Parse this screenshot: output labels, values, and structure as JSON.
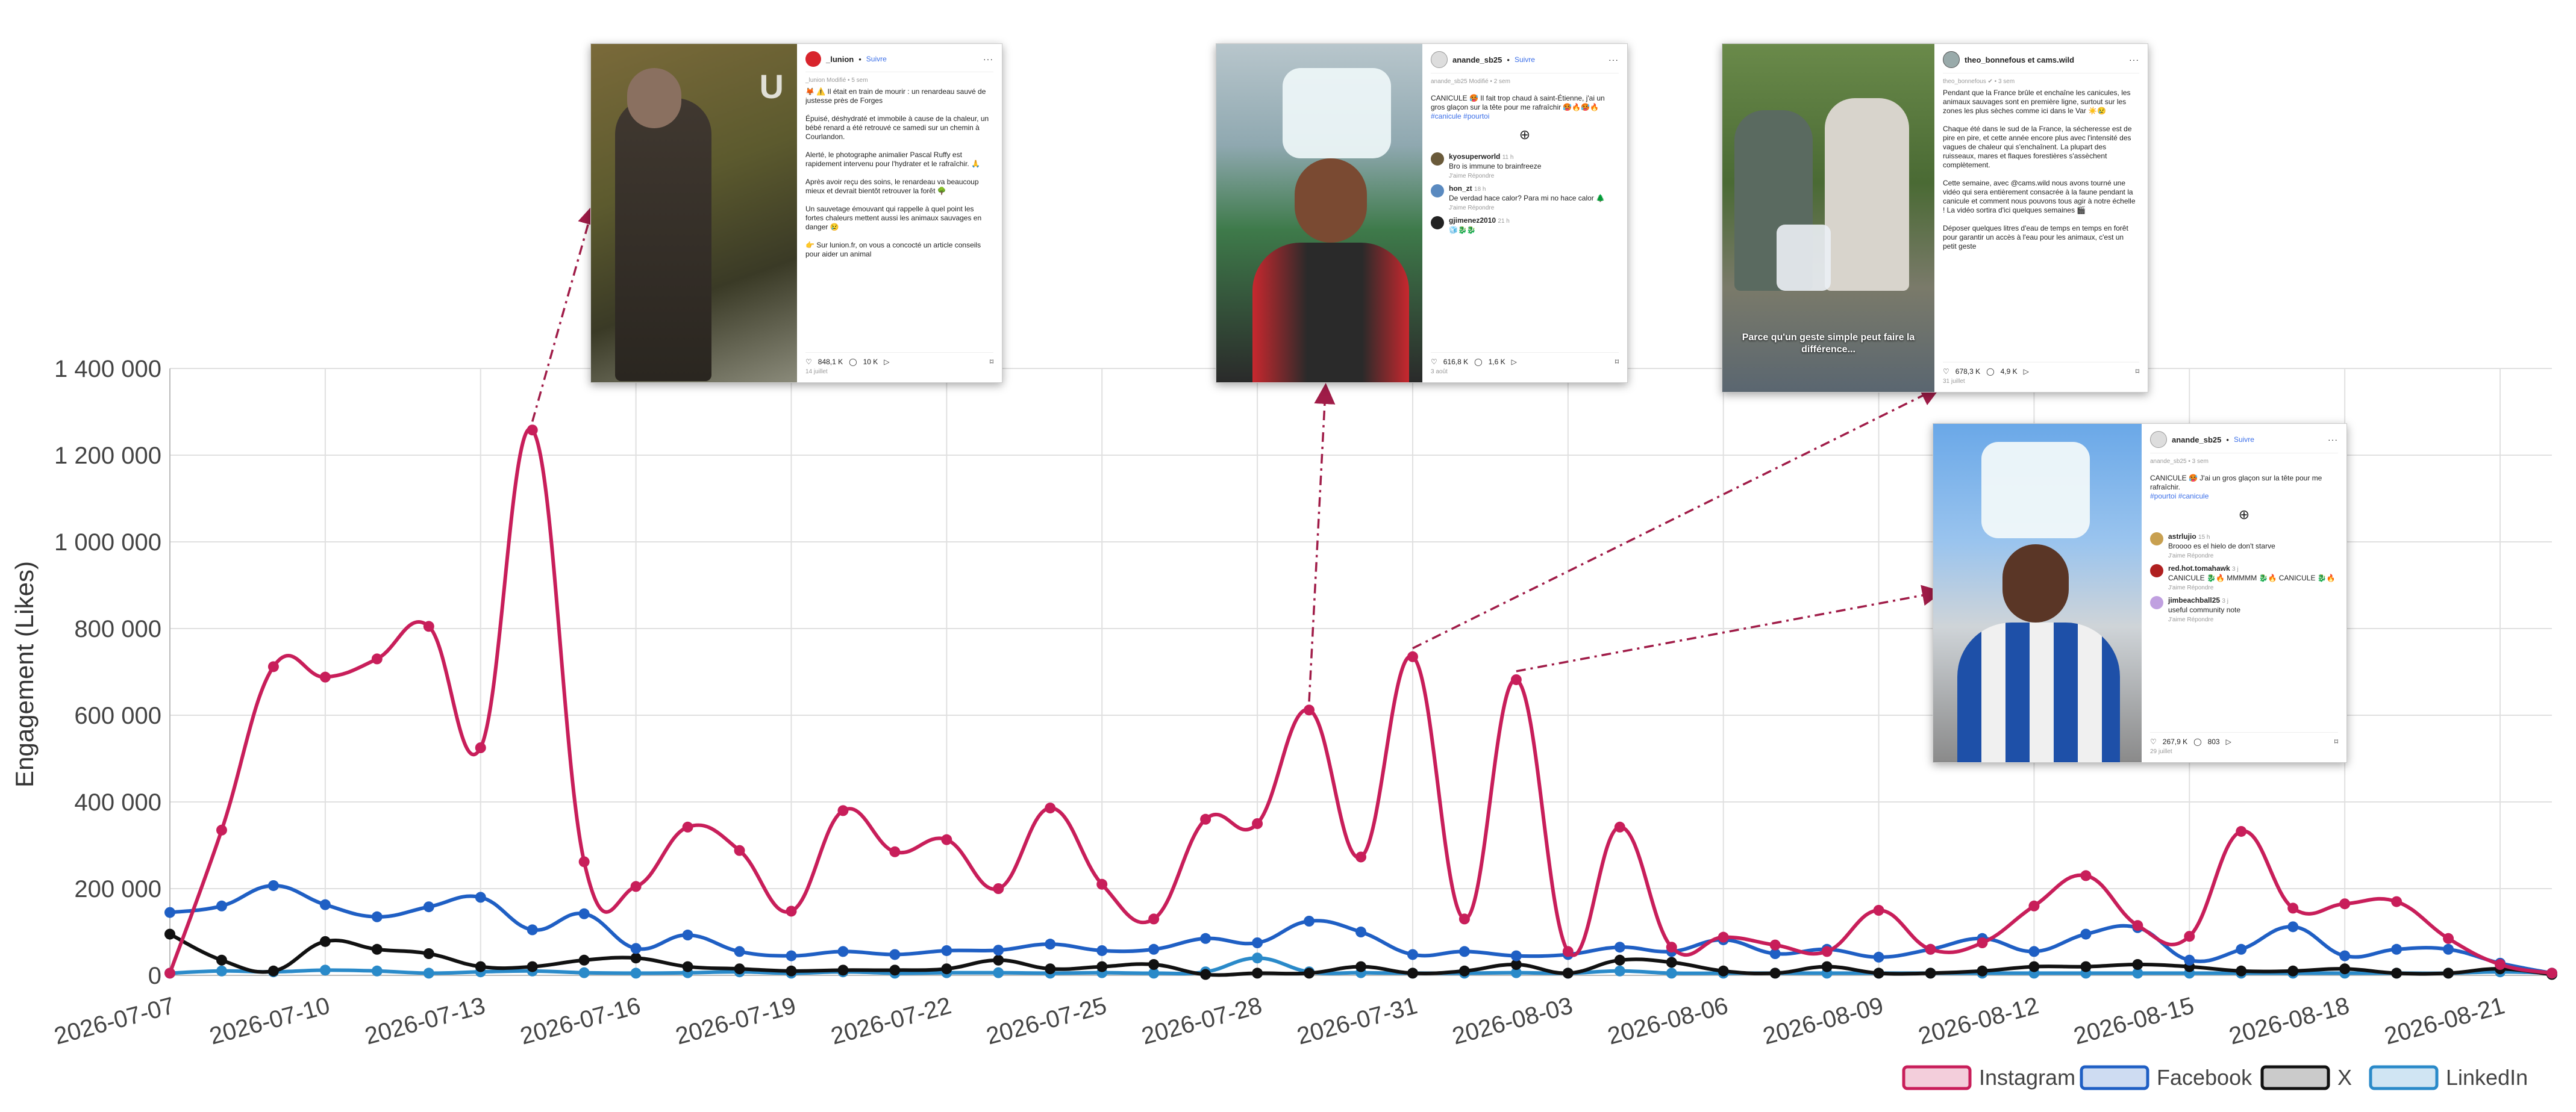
{
  "chart_data": {
    "type": "line",
    "title": "",
    "xlabel": "",
    "ylabel": "Engagement (Likes)",
    "ylim": [
      0,
      1400000
    ],
    "yticks": [
      0,
      200000,
      400000,
      600000,
      800000,
      1000000,
      1200000,
      1400000
    ],
    "ytick_labels": [
      "0",
      "200 000",
      "400 000",
      "600 000",
      "800 000",
      "1 000 000",
      "1 200 000",
      "1 400 000"
    ],
    "xtick_labels": [
      "2026-07-07",
      "2026-07-10",
      "2026-07-13",
      "2026-07-16",
      "2026-07-19",
      "2026-07-22",
      "2026-07-25",
      "2026-07-28",
      "2026-07-31",
      "2026-08-03",
      "2026-08-06",
      "2026-08-09",
      "2026-08-12",
      "2026-08-15",
      "2026-08-18",
      "2026-08-21"
    ],
    "x": [
      "2026-07-07",
      "2026-07-08",
      "2026-07-09",
      "2026-07-10",
      "2026-07-11",
      "2026-07-12",
      "2026-07-13",
      "2026-07-14",
      "2026-07-15",
      "2026-07-16",
      "2026-07-17",
      "2026-07-18",
      "2026-07-19",
      "2026-07-20",
      "2026-07-21",
      "2026-07-22",
      "2026-07-23",
      "2026-07-24",
      "2026-07-25",
      "2026-07-26",
      "2026-07-27",
      "2026-07-28",
      "2026-07-29",
      "2026-07-30",
      "2026-07-31",
      "2026-08-01",
      "2026-08-02",
      "2026-08-03",
      "2026-08-04",
      "2026-08-05",
      "2026-08-06",
      "2026-08-07",
      "2026-08-08",
      "2026-08-09",
      "2026-08-10",
      "2026-08-11",
      "2026-08-12",
      "2026-08-13",
      "2026-08-14",
      "2026-08-15",
      "2026-08-16",
      "2026-08-17",
      "2026-08-18",
      "2026-08-19",
      "2026-08-20",
      "2026-08-21",
      "2026-08-22"
    ],
    "grid": true,
    "legend_position": "bottom-right",
    "series": [
      {
        "name": "Instagram",
        "color": "#c81e5a",
        "values": [
          5000,
          335000,
          712000,
          688000,
          730000,
          805000,
          525000,
          1258000,
          262000,
          205000,
          342000,
          288000,
          148000,
          380000,
          285000,
          313000,
          200000,
          386000,
          210000,
          130000,
          360000,
          350000,
          612000,
          273000,
          735000,
          130000,
          682000,
          55000,
          342000,
          65000,
          88000,
          70000,
          55000,
          150000,
          60000,
          75000,
          160000,
          230000,
          115000,
          90000,
          332000,
          155000,
          165000,
          170000,
          85000,
          25000,
          5000
        ]
      },
      {
        "name": "Facebook",
        "color": "#1f5fc4",
        "values": [
          145000,
          160000,
          207000,
          163000,
          135000,
          158000,
          180000,
          105000,
          142000,
          62000,
          93000,
          55000,
          45000,
          55000,
          48000,
          57000,
          58000,
          72000,
          57000,
          60000,
          85000,
          75000,
          125000,
          100000,
          48000,
          55000,
          45000,
          48000,
          65000,
          55000,
          82000,
          50000,
          60000,
          42000,
          60000,
          85000,
          55000,
          95000,
          110000,
          35000,
          60000,
          112000,
          45000,
          60000,
          60000,
          28000,
          5000
        ]
      },
      {
        "name": "X",
        "color": "#111111",
        "values": [
          95000,
          35000,
          10000,
          78000,
          60000,
          50000,
          20000,
          20000,
          35000,
          40000,
          20000,
          15000,
          10000,
          12000,
          12000,
          15000,
          35000,
          15000,
          20000,
          25000,
          2000,
          5000,
          5000,
          20000,
          5000,
          10000,
          25000,
          5000,
          35000,
          30000,
          10000,
          5000,
          20000,
          5000,
          5000,
          10000,
          20000,
          20000,
          25000,
          20000,
          10000,
          10000,
          15000,
          5000,
          5000,
          15000,
          2000
        ]
      },
      {
        "name": "LinkedIn",
        "color": "#2a8ac9",
        "values": [
          5000,
          10000,
          8000,
          12000,
          10000,
          5000,
          8000,
          10000,
          6000,
          5000,
          6000,
          8000,
          5000,
          8000,
          5000,
          6000,
          6000,
          5000,
          6000,
          5000,
          8000,
          40000,
          8000,
          6000,
          5000,
          5000,
          6000,
          5000,
          10000,
          5000,
          5000,
          5000,
          5000,
          5000,
          5000,
          5000,
          5000,
          5000,
          5000,
          5000,
          5000,
          5000,
          5000,
          5000,
          5000,
          8000,
          5000
        ]
      }
    ]
  },
  "colors": {
    "annotation_arrow": "#a01c48",
    "grid": "#e0e0e0",
    "link_blue": "#3a6ee8"
  },
  "cards": [
    {
      "id": "union",
      "username": "_lunion",
      "follow": "Suivre",
      "author_line": "_lunion Modifié • 5 sem",
      "caption": "🦊 ⚠️ Il était en train de mourir : un renardeau sauvé de justesse près de Forges\n\nÉpuisé, déshydraté et immobile à cause de la chaleur, un bébé renard a été retrouvé ce samedi sur un chemin à Courlandon.\n\nAlerté, le photographe animalier Pascal Ruffy est rapidement intervenu pour l'hydrater et le rafraîchir. 🙏\n\nAprès avoir reçu des soins, le renardeau va beaucoup mieux et devrait bientôt retrouver la forêt 🌳\n\nUn sauvetage émouvant qui rappelle à quel point les fortes chaleurs mettent aussi les animaux sauvages en danger 😢\n\n👉 Sur lunion.fr, on vous a concocté un article conseils pour aider un animal",
      "likes": "848,1 K",
      "comments": "10 K",
      "date": "14 juillet",
      "watermark": "U"
    },
    {
      "id": "anande1",
      "username": "anande_sb25",
      "follow": "Suivre",
      "author_line": "anande_sb25 Modifié • 2 sem",
      "caption": "CANICULE 🥵 Il fait trop chaud à saint-Étienne, j'ai un gros glaçon sur la tête pour me rafraîchir 🥵🔥🥵🔥",
      "tags": "#canicule #pourtoi",
      "comments_list": [
        {
          "user": "kyosuperworld",
          "time": "11 h",
          "text": "Bro is immune to brainfreeze",
          "meta": "J'aime   Répondre"
        },
        {
          "user": "hon_zt",
          "time": "18 h",
          "text": "De verdad hace calor? Para mi no hace calor 🌲",
          "meta": "J'aime   Répondre"
        },
        {
          "user": "gjimenez2010",
          "time": "21 h",
          "text": "🧊🐉🐉",
          "meta": ""
        }
      ],
      "likes": "616,8 K",
      "comments": "1,6 K",
      "date": "3 août"
    },
    {
      "id": "theo",
      "username": "theo_bonnefous et cams.wild",
      "author_line": "theo_bonnefous ✔ • 3 sem",
      "caption": "Pendant que la France brûle et enchaîne les canicules, les animaux sauvages sont en première ligne, surtout sur les zones les plus sèches comme ici dans le Var ☀️😢\n\nChaque été dans le sud de la France, la sécheresse est de pire en pire, et cette année encore plus avec l'intensité des vagues de chaleur qui s'enchaînent. La plupart des ruisseaux, mares et flaques forestières s'assèchent complètement.\n\nCette semaine, avec @cams.wild nous avons tourné une vidéo qui sera entièrement consacrée à la faune pendant la canicule et comment nous pouvons tous agir à notre échelle ! La vidéo sortira d'ici quelques semaines 🎬\n\nDéposer quelques litres d'eau de temps en temps en forêt pour garantir un accès à l'eau pour les animaux, c'est un petit geste",
      "photo_overlay": "Parce qu'un geste simple peut faire la différence...",
      "likes": "678,3 K",
      "comments": "4,9 K",
      "date": "31 juillet"
    },
    {
      "id": "anande2",
      "username": "anande_sb25",
      "follow": "Suivre",
      "author_line": "anande_sb25 • 3 sem",
      "caption": "CANICULE 🥵 J'ai un gros glaçon sur la tête pour me rafraîchir.",
      "tags": "#pourtoi #canicule",
      "comments_list": [
        {
          "user": "astrlujio",
          "time": "15 h",
          "text": "Broooo es el hielo de don't starve",
          "meta": "J'aime   Répondre"
        },
        {
          "user": "red.hot.tomahawk",
          "time": "3 j",
          "text": "CANICULE 🐉🔥 MMMMM 🐉🔥 CANICULE 🐉🔥",
          "meta": "J'aime   Répondre"
        },
        {
          "user": "jimbeachball25",
          "time": "3 j",
          "text": "useful community note",
          "meta": "J'aime   Répondre"
        }
      ],
      "likes": "267,9 K",
      "comments": "803",
      "date": "29 juillet"
    }
  ]
}
